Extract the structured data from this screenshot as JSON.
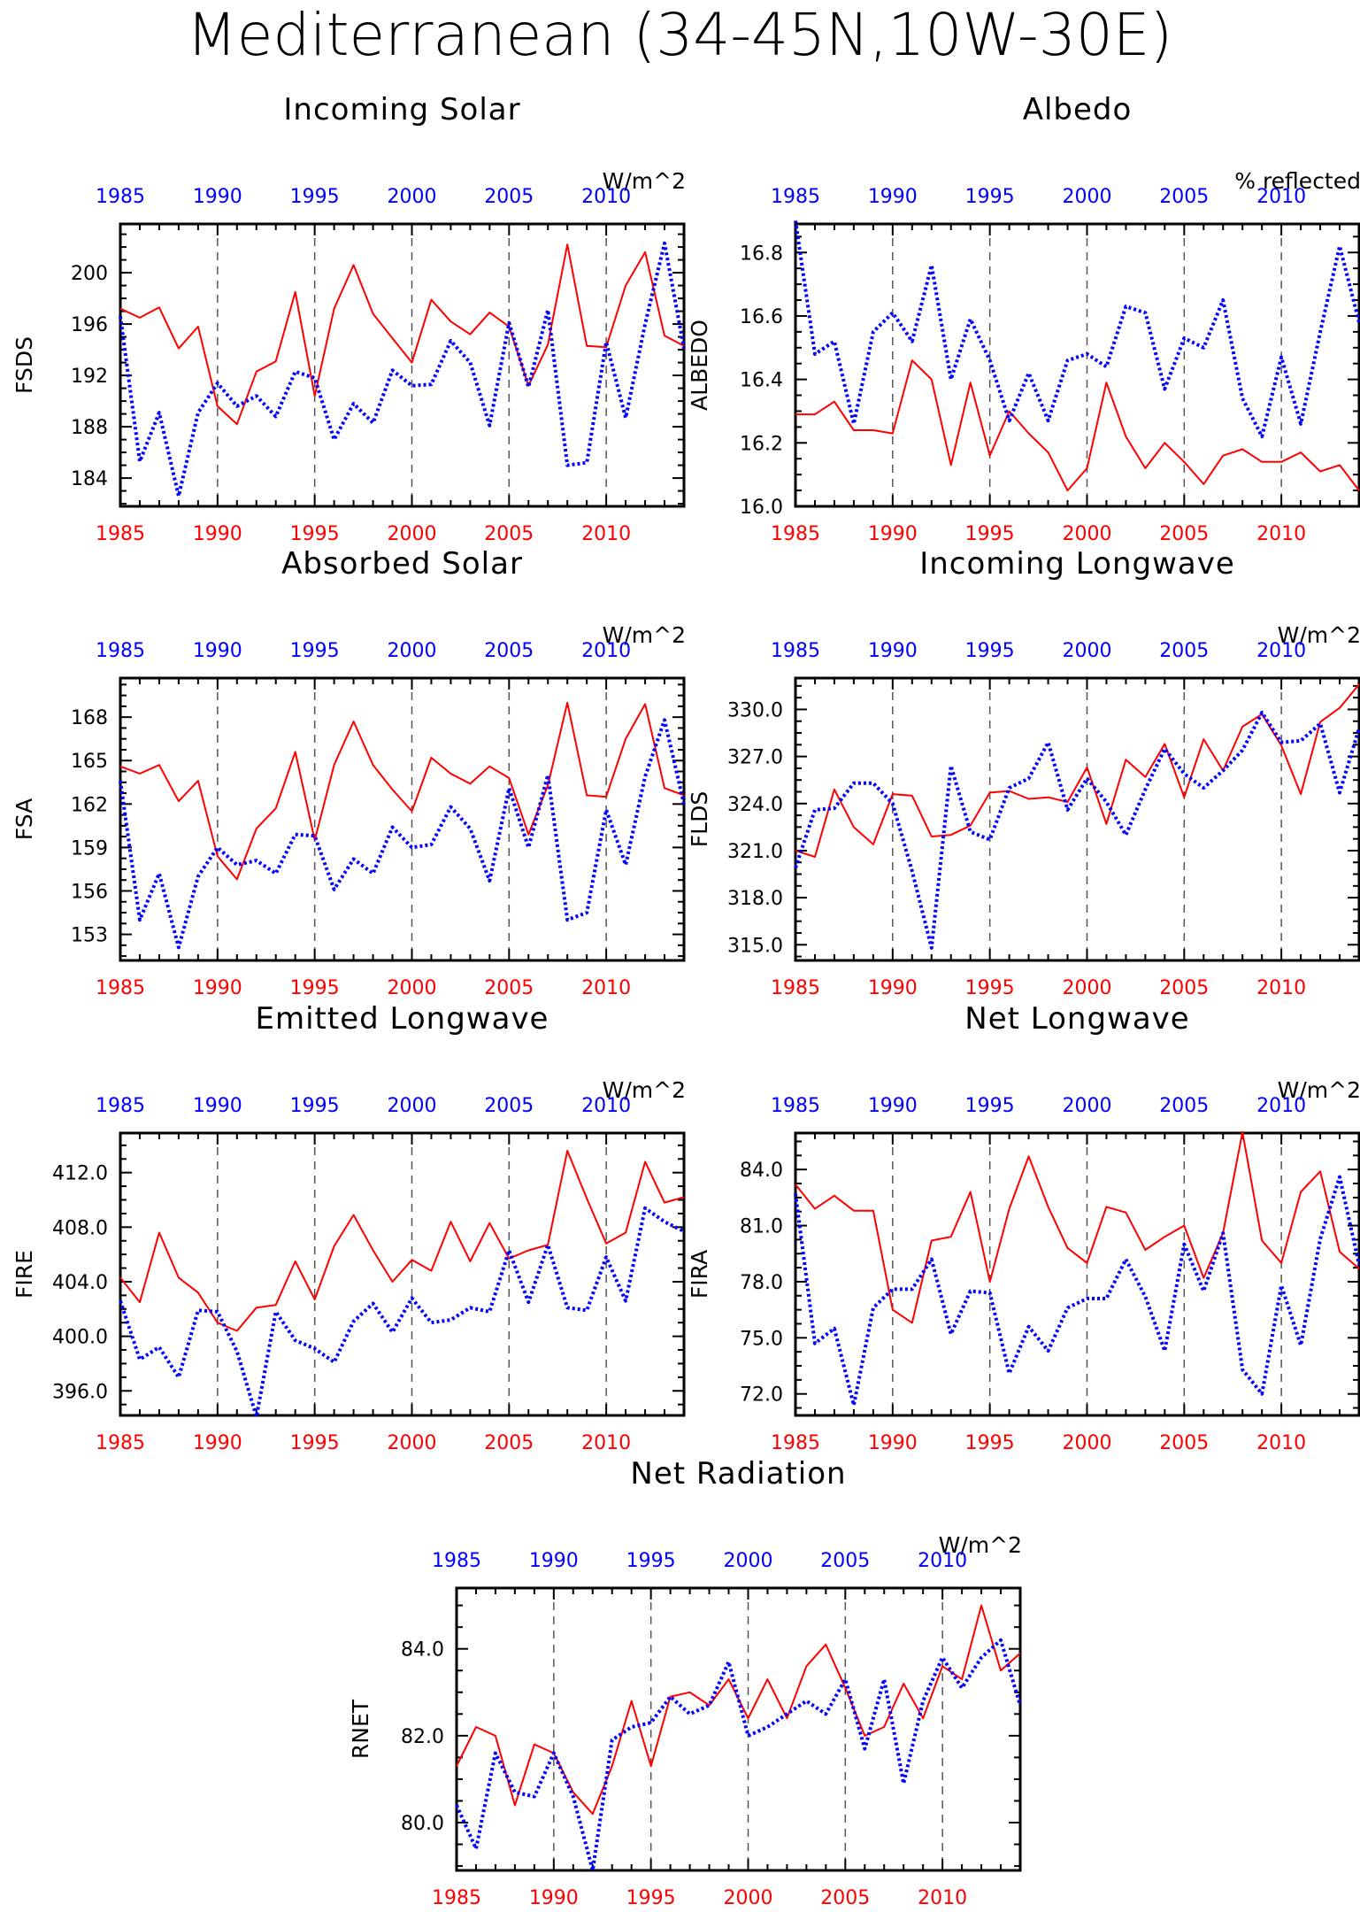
{
  "title": "Mediterranean (34-45N,10W-30E)",
  "colors": {
    "series1": "#ff0000",
    "series2": "#0000ff",
    "axis": "#000000",
    "grid": "#555555"
  },
  "chart_data": [
    {
      "type": "line",
      "title": "Incoming Solar",
      "units": "W/m^2",
      "ylabel": "FSDS",
      "xlim": [
        1985,
        2014
      ],
      "ylim": [
        181.8,
        203.8
      ],
      "yticks": [
        184,
        188,
        192,
        196,
        200
      ],
      "ytick_labels": [
        "184",
        "188",
        "192",
        "196",
        "200"
      ],
      "xticks": [
        1985,
        1990,
        1995,
        2000,
        2005,
        2010
      ],
      "xtick_labels": [
        "1985",
        "1990",
        "1995",
        "2000",
        "2005",
        "2010"
      ],
      "grid": "dashed vertical at 5-year ticks",
      "x": [
        1985,
        1986,
        1987,
        1988,
        1989,
        1990,
        1991,
        1992,
        1993,
        1994,
        1995,
        1996,
        1997,
        1998,
        1999,
        2000,
        2001,
        2002,
        2003,
        2004,
        2005,
        2006,
        2007,
        2008,
        2009,
        2010,
        2011,
        2012,
        2013,
        2014
      ],
      "series": [
        {
          "values": [
            197.2,
            196.5,
            197.3,
            194.1,
            195.8,
            189.6,
            188.2,
            192.3,
            193.1,
            198.5,
            190.4,
            197.2,
            200.6,
            196.8,
            194.9,
            193.0,
            197.9,
            196.2,
            195.2,
            196.9,
            195.8,
            191.2,
            194.4,
            202.2,
            194.3,
            194.2,
            199.0,
            201.6,
            195.1,
            194.3
          ]
        },
        {
          "values": [
            196.6,
            185.3,
            189.1,
            182.6,
            189.1,
            191.4,
            189.6,
            190.4,
            188.8,
            192.3,
            191.8,
            187.0,
            189.8,
            188.3,
            192.4,
            191.2,
            191.3,
            194.7,
            193.0,
            188.1,
            196.1,
            191.1,
            197.1,
            185.0,
            185.2,
            194.6,
            188.7,
            196.0,
            202.3,
            194.1
          ]
        }
      ]
    },
    {
      "type": "line",
      "title": "Albedo",
      "units": "% reflected",
      "ylabel": "ALBEDO",
      "xlim": [
        1985,
        2014
      ],
      "ylim": [
        16.0,
        16.89
      ],
      "yticks": [
        16.0,
        16.2,
        16.4,
        16.6,
        16.8
      ],
      "ytick_labels": [
        "16.0",
        "16.2",
        "16.4",
        "16.6",
        "16.8"
      ],
      "xticks": [
        1985,
        1990,
        1995,
        2000,
        2005,
        2010
      ],
      "xtick_labels": [
        "1985",
        "1990",
        "1995",
        "2000",
        "2005",
        "2010"
      ],
      "grid": "dashed vertical at 5-year ticks",
      "x": [
        1985,
        1986,
        1987,
        1988,
        1989,
        1990,
        1991,
        1992,
        1993,
        1994,
        1995,
        1996,
        1997,
        1998,
        1999,
        2000,
        2001,
        2002,
        2003,
        2004,
        2005,
        2006,
        2007,
        2008,
        2009,
        2010,
        2011,
        2012,
        2013,
        2014
      ],
      "series": [
        {
          "values": [
            16.29,
            16.29,
            16.33,
            16.24,
            16.24,
            16.23,
            16.46,
            16.4,
            16.13,
            16.39,
            16.16,
            16.3,
            16.23,
            16.17,
            16.05,
            16.12,
            16.39,
            16.22,
            16.12,
            16.2,
            16.14,
            16.07,
            16.16,
            16.18,
            16.14,
            16.14,
            16.17,
            16.11,
            16.13,
            16.05
          ]
        },
        {
          "values": [
            16.9,
            16.48,
            16.52,
            16.26,
            16.55,
            16.61,
            16.52,
            16.76,
            16.4,
            16.59,
            16.46,
            16.27,
            16.42,
            16.27,
            16.46,
            16.48,
            16.44,
            16.63,
            16.61,
            16.37,
            16.53,
            16.5,
            16.65,
            16.34,
            16.22,
            16.47,
            16.26,
            16.55,
            16.82,
            16.58
          ]
        }
      ]
    },
    {
      "type": "line",
      "title": "Absorbed Solar",
      "units": "W/m^2",
      "ylabel": "FSA",
      "xlim": [
        1985,
        2014
      ],
      "ylim": [
        151.2,
        170.7
      ],
      "yticks": [
        153,
        156,
        159,
        162,
        165,
        168
      ],
      "ytick_labels": [
        "153",
        "156",
        "159",
        "162",
        "165",
        "168"
      ],
      "xticks": [
        1985,
        1990,
        1995,
        2000,
        2005,
        2010
      ],
      "xtick_labels": [
        "1985",
        "1990",
        "1995",
        "2000",
        "2005",
        "2010"
      ],
      "grid": "dashed vertical at 5-year ticks",
      "x": [
        1985,
        1986,
        1987,
        1988,
        1989,
        1990,
        1991,
        1992,
        1993,
        1994,
        1995,
        1996,
        1997,
        1998,
        1999,
        2000,
        2001,
        2002,
        2003,
        2004,
        2005,
        2006,
        2007,
        2008,
        2009,
        2010,
        2011,
        2012,
        2013,
        2014
      ],
      "series": [
        {
          "values": [
            164.6,
            164.1,
            164.7,
            162.2,
            163.6,
            158.4,
            156.8,
            160.3,
            161.7,
            165.6,
            159.5,
            164.7,
            167.7,
            164.7,
            163.0,
            161.5,
            165.2,
            164.1,
            163.4,
            164.6,
            163.8,
            159.9,
            163.3,
            169.0,
            162.6,
            162.5,
            166.5,
            168.9,
            163.1,
            162.6
          ]
        },
        {
          "values": [
            163.6,
            154.0,
            157.2,
            152.1,
            157.0,
            159.0,
            157.8,
            158.1,
            157.2,
            159.9,
            159.8,
            156.1,
            158.2,
            157.2,
            160.4,
            159.0,
            159.2,
            161.8,
            160.3,
            156.7,
            163.1,
            159.0,
            164.0,
            154.0,
            154.5,
            161.6,
            157.8,
            163.9,
            167.8,
            162.0
          ]
        }
      ]
    },
    {
      "type": "line",
      "title": "Incoming Longwave",
      "units": "W/m^2",
      "ylabel": "FLDS",
      "xlim": [
        1985,
        2014
      ],
      "ylim": [
        314.0,
        332.0
      ],
      "yticks": [
        315.0,
        318.0,
        321.0,
        324.0,
        327.0,
        330.0
      ],
      "ytick_labels": [
        "315.0",
        "318.0",
        "321.0",
        "324.0",
        "327.0",
        "330.0"
      ],
      "xticks": [
        1985,
        1990,
        1995,
        2000,
        2005,
        2010
      ],
      "xtick_labels": [
        "1985",
        "1990",
        "1995",
        "2000",
        "2005",
        "2010"
      ],
      "grid": "dashed vertical at 5-year ticks",
      "x": [
        1985,
        1986,
        1987,
        1988,
        1989,
        1990,
        1991,
        1992,
        1993,
        1994,
        1995,
        1996,
        1997,
        1998,
        1999,
        2000,
        2001,
        2002,
        2003,
        2004,
        2005,
        2006,
        2007,
        2008,
        2009,
        2010,
        2011,
        2012,
        2013,
        2014
      ],
      "series": [
        {
          "values": [
            321.0,
            320.6,
            324.9,
            322.5,
            321.4,
            324.6,
            324.5,
            321.9,
            322.0,
            322.6,
            324.7,
            324.8,
            324.3,
            324.4,
            324.1,
            326.3,
            322.7,
            326.8,
            325.7,
            327.8,
            324.4,
            328.1,
            326.1,
            328.9,
            329.7,
            327.7,
            324.6,
            329.2,
            330.1,
            331.6
          ]
        },
        {
          "values": [
            319.9,
            323.6,
            323.7,
            325.3,
            325.3,
            324.0,
            319.7,
            314.8,
            326.4,
            322.2,
            321.7,
            325.0,
            325.6,
            327.9,
            323.6,
            325.6,
            324.1,
            322.0,
            324.9,
            327.5,
            325.9,
            325.0,
            326.1,
            327.4,
            329.8,
            327.9,
            328.0,
            329.1,
            324.7,
            328.8
          ]
        }
      ]
    },
    {
      "type": "line",
      "title": "Emitted Longwave",
      "units": "W/m^2",
      "ylabel": "FIRE",
      "xlim": [
        1985,
        2014
      ],
      "ylim": [
        394.2,
        414.9
      ],
      "yticks": [
        396.0,
        400.0,
        404.0,
        408.0,
        412.0
      ],
      "ytick_labels": [
        "396.0",
        "400.0",
        "404.0",
        "408.0",
        "412.0"
      ],
      "xticks": [
        1985,
        1990,
        1995,
        2000,
        2005,
        2010
      ],
      "xtick_labels": [
        "1985",
        "1990",
        "1995",
        "2000",
        "2005",
        "2010"
      ],
      "grid": "dashed vertical at 5-year ticks",
      "x": [
        1985,
        1986,
        1987,
        1988,
        1989,
        1990,
        1991,
        1992,
        1993,
        1994,
        1995,
        1996,
        1997,
        1998,
        1999,
        2000,
        2001,
        2002,
        2003,
        2004,
        2005,
        2006,
        2007,
        2008,
        2009,
        2010,
        2011,
        2012,
        2013,
        2014
      ],
      "series": [
        {
          "values": [
            404.3,
            402.5,
            407.6,
            404.3,
            403.2,
            401.0,
            400.4,
            402.1,
            402.3,
            405.5,
            402.7,
            406.6,
            408.9,
            406.3,
            404.0,
            405.6,
            404.8,
            408.4,
            405.5,
            408.3,
            405.7,
            406.3,
            406.7,
            413.6,
            410.1,
            406.8,
            407.6,
            412.8,
            409.8,
            410.2
          ]
        },
        {
          "values": [
            402.6,
            398.3,
            399.2,
            397.0,
            401.9,
            401.8,
            398.9,
            394.1,
            401.8,
            399.7,
            399.1,
            398.1,
            401.1,
            402.4,
            400.3,
            402.8,
            401.0,
            401.2,
            402.1,
            401.8,
            406.3,
            402.5,
            406.7,
            402.1,
            401.9,
            405.8,
            402.6,
            409.4,
            408.4,
            407.7
          ]
        }
      ]
    },
    {
      "type": "line",
      "title": "Net Longwave",
      "units": "W/m^2",
      "ylabel": "FIRA",
      "xlim": [
        1985,
        2014
      ],
      "ylim": [
        70.85,
        85.95
      ],
      "yticks": [
        72.0,
        75.0,
        78.0,
        81.0,
        84.0
      ],
      "ytick_labels": [
        "72.0",
        "75.0",
        "78.0",
        "81.0",
        "84.0"
      ],
      "xticks": [
        1985,
        1990,
        1995,
        2000,
        2005,
        2010
      ],
      "xtick_labels": [
        "1985",
        "1990",
        "1995",
        "2000",
        "2005",
        "2010"
      ],
      "grid": "dashed vertical at 5-year ticks",
      "x": [
        1985,
        1986,
        1987,
        1988,
        1989,
        1990,
        1991,
        1992,
        1993,
        1994,
        1995,
        1996,
        1997,
        1998,
        1999,
        2000,
        2001,
        2002,
        2003,
        2004,
        2005,
        2006,
        2007,
        2008,
        2009,
        2010,
        2011,
        2012,
        2013,
        2014
      ],
      "series": [
        {
          "values": [
            83.2,
            81.9,
            82.6,
            81.8,
            81.8,
            76.5,
            75.8,
            80.2,
            80.4,
            82.8,
            78.0,
            81.9,
            84.7,
            82.0,
            79.8,
            79.0,
            82.0,
            81.7,
            79.7,
            80.4,
            81.0,
            78.2,
            80.6,
            86.0,
            80.2,
            79.0,
            82.8,
            83.9,
            79.6,
            78.7
          ]
        },
        {
          "values": [
            82.7,
            74.7,
            75.5,
            71.4,
            76.6,
            77.6,
            77.6,
            79.2,
            75.2,
            77.5,
            77.4,
            73.1,
            75.6,
            74.3,
            76.6,
            77.1,
            77.1,
            79.2,
            77.2,
            74.3,
            80.0,
            77.5,
            80.6,
            73.3,
            72.0,
            77.8,
            74.6,
            80.3,
            83.6,
            78.9
          ]
        }
      ]
    },
    {
      "type": "line",
      "title": "Net Radiation",
      "units": "W/m^2",
      "ylabel": "RNET",
      "xlim": [
        1985,
        2014
      ],
      "ylim": [
        78.9,
        85.4
      ],
      "yticks": [
        80.0,
        82.0,
        84.0
      ],
      "ytick_labels": [
        "80.0",
        "82.0",
        "84.0"
      ],
      "xticks": [
        1985,
        1990,
        1995,
        2000,
        2005,
        2010
      ],
      "xtick_labels": [
        "1985",
        "1990",
        "1995",
        "2000",
        "2005",
        "2010"
      ],
      "grid": "dashed vertical at 5-year ticks",
      "x": [
        1985,
        1986,
        1987,
        1988,
        1989,
        1990,
        1991,
        1992,
        1993,
        1994,
        1995,
        1996,
        1997,
        1998,
        1999,
        2000,
        2001,
        2002,
        2003,
        2004,
        2005,
        2006,
        2007,
        2008,
        2009,
        2010,
        2011,
        2012,
        2013,
        2014
      ],
      "series": [
        {
          "values": [
            81.3,
            82.2,
            82.0,
            80.4,
            81.8,
            81.6,
            80.7,
            80.2,
            81.3,
            82.8,
            81.3,
            82.9,
            83.0,
            82.7,
            83.3,
            82.4,
            83.3,
            82.4,
            83.6,
            84.1,
            83.1,
            82.0,
            82.2,
            83.2,
            82.4,
            83.6,
            83.3,
            85.0,
            83.5,
            83.9
          ]
        },
        {
          "values": [
            80.4,
            79.4,
            81.6,
            80.7,
            80.6,
            81.6,
            80.6,
            78.9,
            81.9,
            82.2,
            82.3,
            82.9,
            82.5,
            82.7,
            83.7,
            82.0,
            82.2,
            82.5,
            82.8,
            82.5,
            83.3,
            81.7,
            83.3,
            80.9,
            82.8,
            83.8,
            83.1,
            83.8,
            84.2,
            82.7
          ]
        }
      ]
    }
  ]
}
